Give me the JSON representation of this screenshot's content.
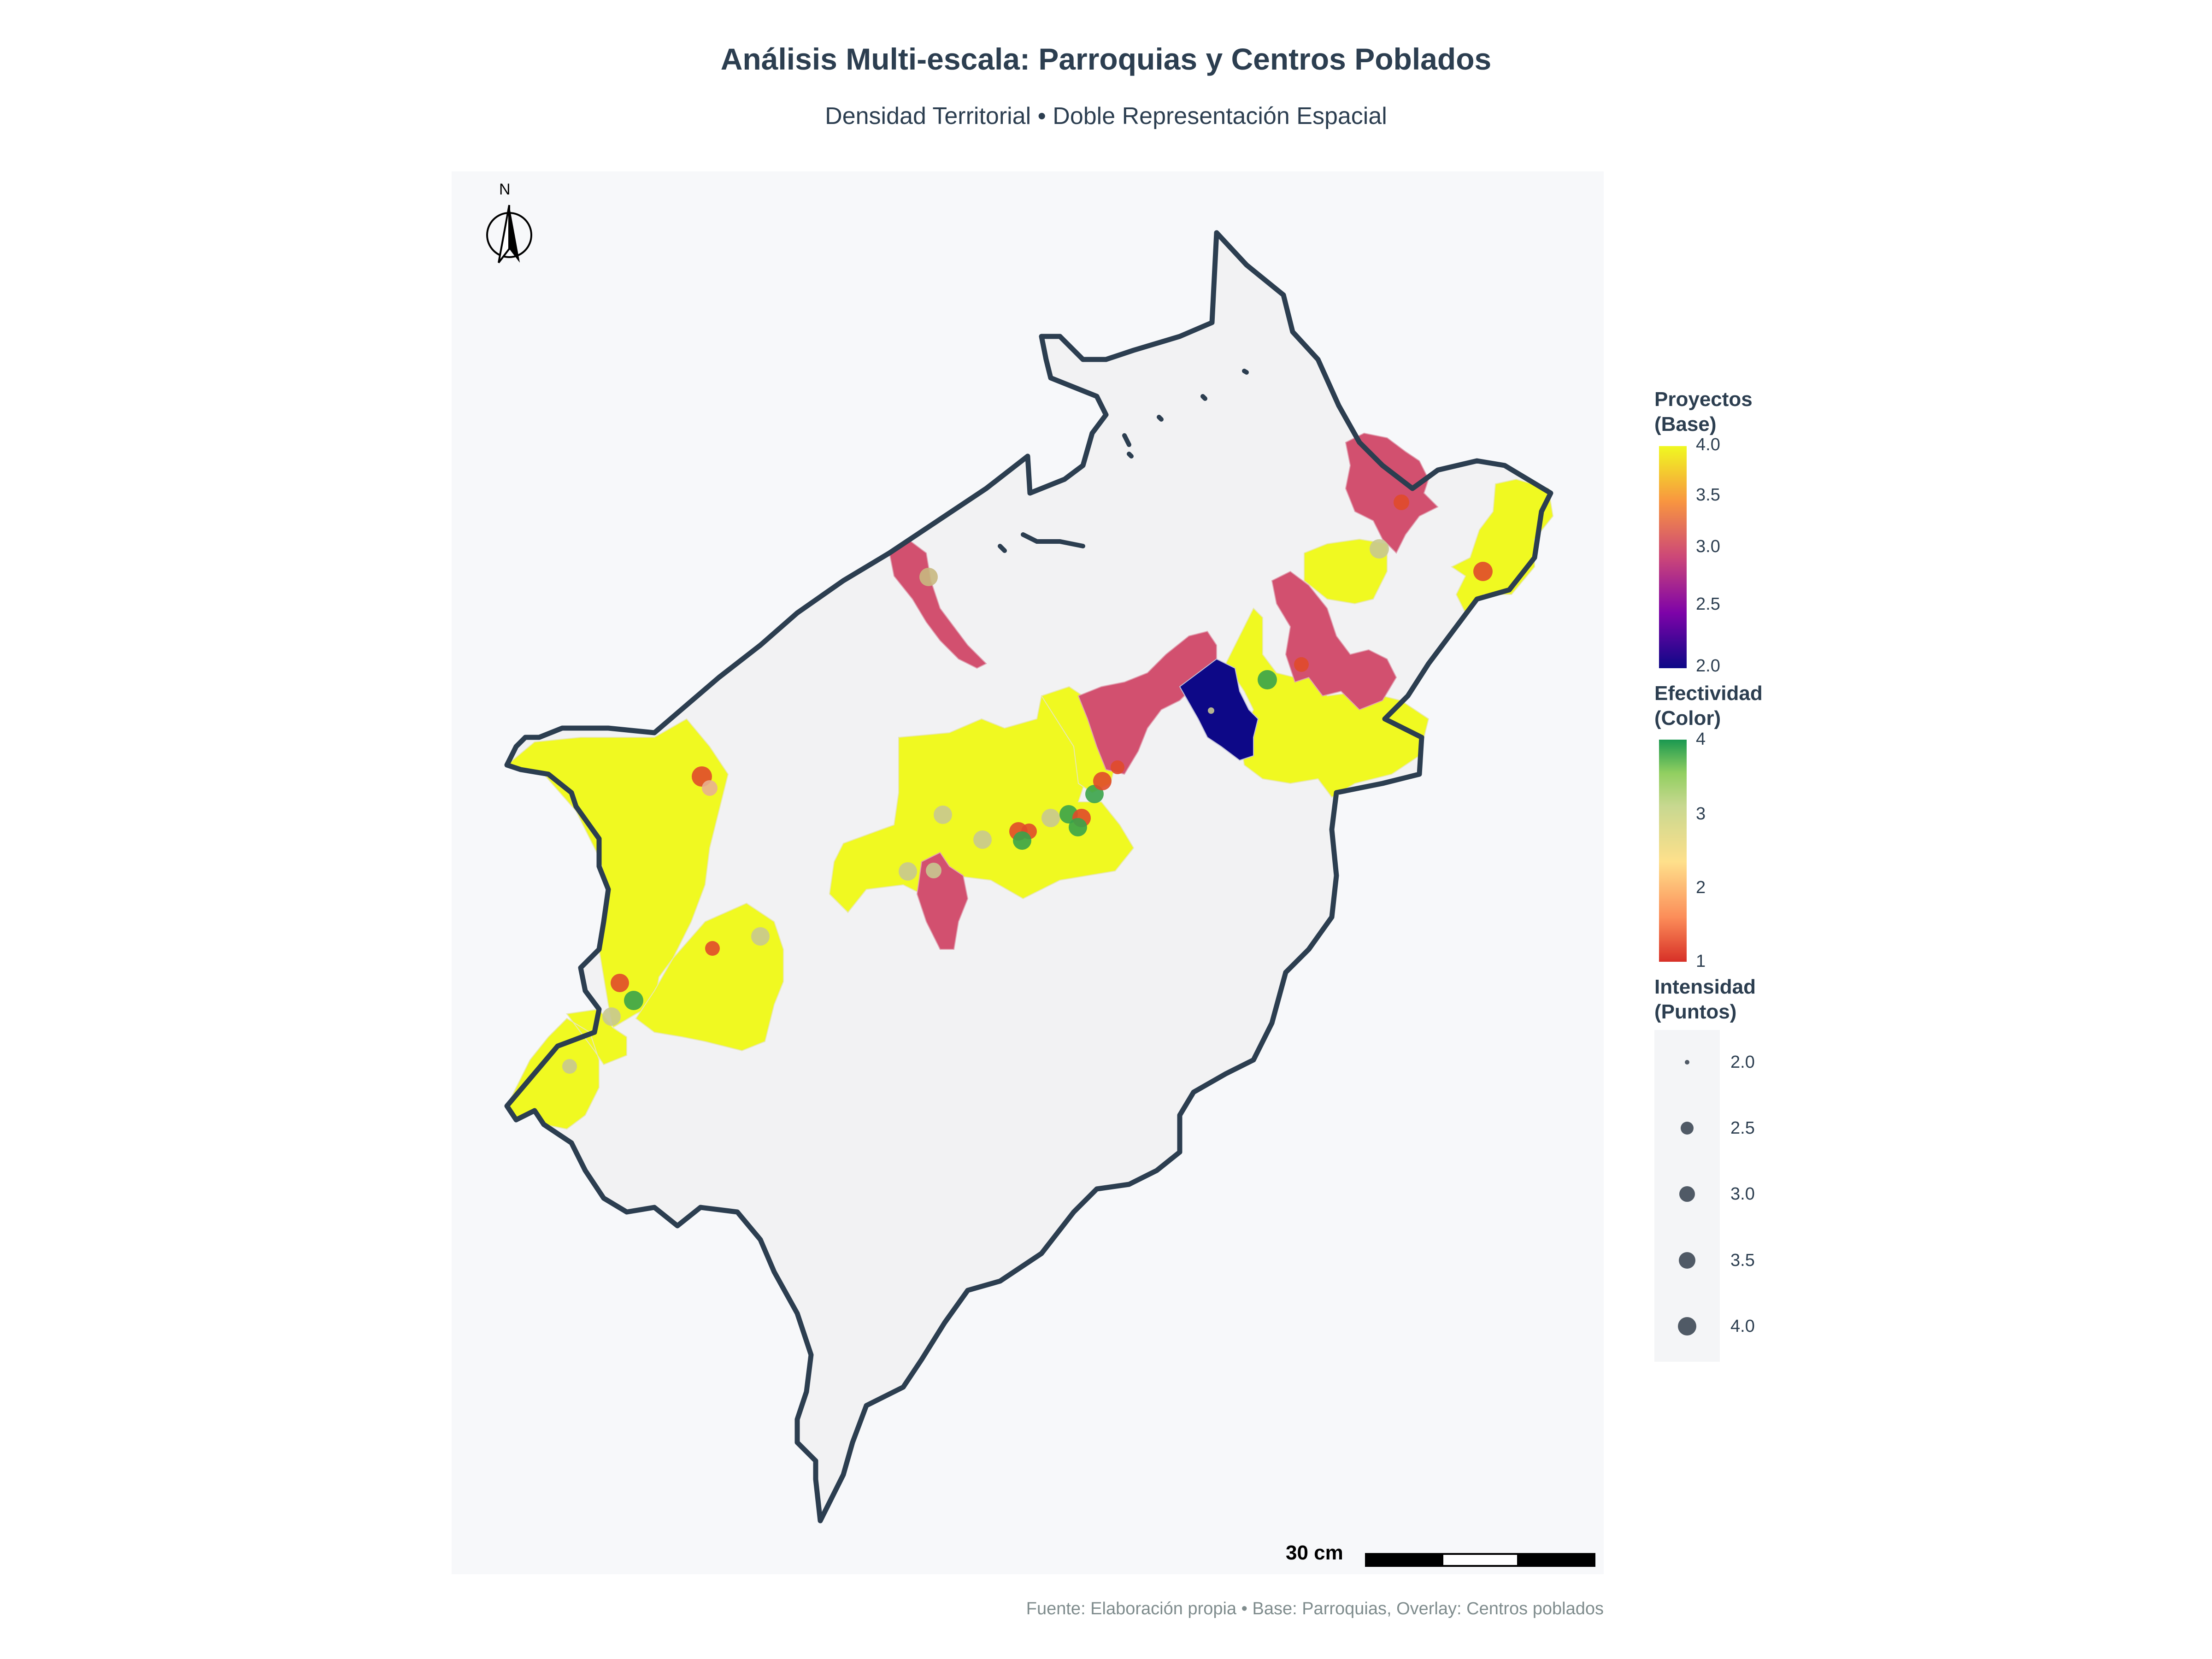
{
  "title": "Análisis Multi-escala: Parroquias y Centros Poblados",
  "subtitle": "Densidad Territorial • Doble Representación Espacial",
  "north_label": "N",
  "scale_label": "30 cm",
  "source": "Fuente: Elaboración propia • Base: Parroquias, Overlay: Centros poblados",
  "legend_base": {
    "title_line1": "Proyectos",
    "title_line2": "(Base)",
    "ticks": [
      "4.0",
      "3.5",
      "3.0",
      "2.5",
      "2.0"
    ],
    "colorscale": [
      "#0d0887",
      "#7e03a8",
      "#cc4778",
      "#f89540",
      "#f0f921"
    ]
  },
  "legend_color": {
    "title_line1": "Efectividad",
    "title_line2": "(Color)",
    "ticks": [
      "4",
      "3",
      "2",
      "1"
    ],
    "colorscale": [
      "#d73027",
      "#fc8d59",
      "#fee08b",
      "#d9ef8b",
      "#91cf60",
      "#1a9850"
    ]
  },
  "legend_size": {
    "title_line1": "Intensidad",
    "title_line2": "(Puntos)",
    "ticks": [
      "2.0",
      "2.5",
      "3.0",
      "3.5",
      "4.0"
    ]
  },
  "colors": {
    "yellow": "#f0f921",
    "pink": "#d2506f",
    "navy": "#0d0887",
    "outline": "#2c3e50",
    "land": "#f2f2f3"
  }
}
